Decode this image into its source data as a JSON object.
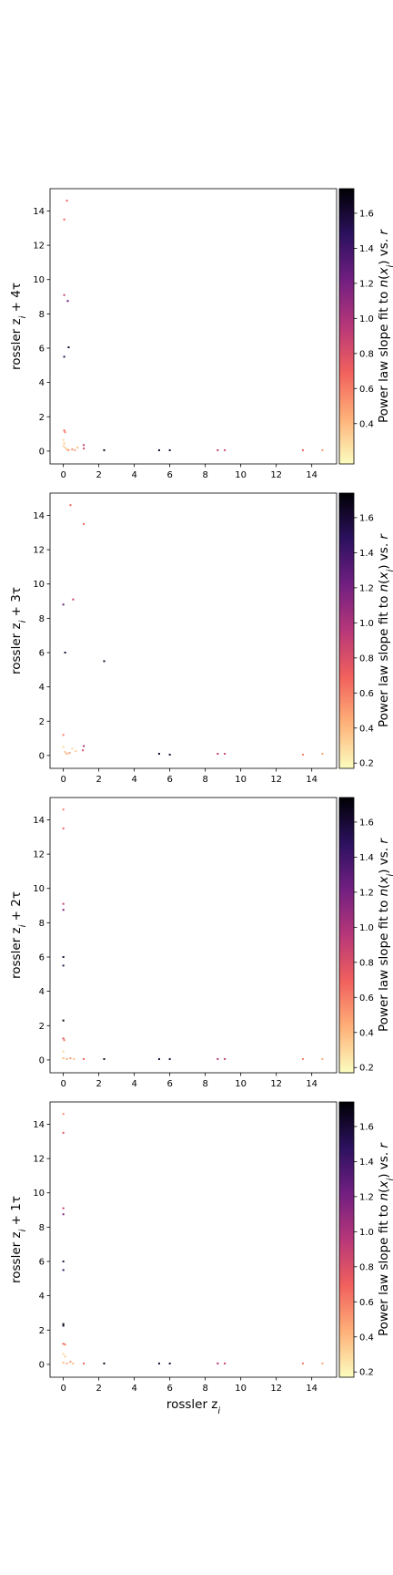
{
  "chart_data": [
    {
      "type": "scatter",
      "ylabel": "rossler z_i + 4τ",
      "xlabel": "",
      "colorbar_label": "Power law slope fit to n(x_i) vs. r",
      "xlim": [
        -0.75,
        15.4
      ],
      "ylim": [
        -0.75,
        15.3
      ],
      "xticks": [
        0,
        2,
        4,
        6,
        8,
        10,
        12,
        14
      ],
      "yticks": [
        0,
        2,
        4,
        6,
        8,
        10,
        12,
        14
      ],
      "clim": [
        0.17,
        1.74
      ],
      "cticks": [
        0.4,
        0.6,
        0.8,
        1.0,
        1.2,
        1.4,
        1.6
      ],
      "points": [
        {
          "x": 0.2,
          "y": 14.6,
          "c": 0.7
        },
        {
          "x": 0.05,
          "y": 13.5,
          "c": 0.7
        },
        {
          "x": 0.05,
          "y": 9.1,
          "c": 0.9
        },
        {
          "x": 0.25,
          "y": 8.75,
          "c": 1.3
        },
        {
          "x": 0.3,
          "y": 6.05,
          "c": 1.65
        },
        {
          "x": 0.05,
          "y": 5.5,
          "c": 1.5
        },
        {
          "x": 0.05,
          "y": 1.2,
          "c": 0.7
        },
        {
          "x": 0.1,
          "y": 1.1,
          "c": 0.6
        },
        {
          "x": 0.0,
          "y": 0.65,
          "c": 0.3
        },
        {
          "x": 0.05,
          "y": 0.45,
          "c": 0.35
        },
        {
          "x": 0.0,
          "y": 0.3,
          "c": 0.3
        },
        {
          "x": 0.1,
          "y": 0.2,
          "c": 0.35
        },
        {
          "x": 0.2,
          "y": 0.1,
          "c": 0.4
        },
        {
          "x": 0.3,
          "y": 0.05,
          "c": 0.5
        },
        {
          "x": 0.5,
          "y": 0.1,
          "c": 0.55
        },
        {
          "x": 0.8,
          "y": 0.2,
          "c": 0.4
        },
        {
          "x": 0.65,
          "y": 0.05,
          "c": 0.45
        },
        {
          "x": 1.15,
          "y": 0.35,
          "c": 0.9
        },
        {
          "x": 1.15,
          "y": 0.15,
          "c": 0.8
        },
        {
          "x": 2.3,
          "y": 0.05,
          "c": 1.65
        },
        {
          "x": 5.4,
          "y": 0.05,
          "c": 1.6
        },
        {
          "x": 6.0,
          "y": 0.05,
          "c": 1.6
        },
        {
          "x": 8.7,
          "y": 0.05,
          "c": 0.9
        },
        {
          "x": 9.1,
          "y": 0.05,
          "c": 0.85
        },
        {
          "x": 13.5,
          "y": 0.05,
          "c": 0.7
        },
        {
          "x": 14.6,
          "y": 0.05,
          "c": 0.5
        }
      ]
    },
    {
      "type": "scatter",
      "ylabel": "rossler z_i + 3τ",
      "xlabel": "",
      "colorbar_label": "Power law slope fit to n(x_i) vs. r",
      "xlim": [
        -0.75,
        15.4
      ],
      "ylim": [
        -0.75,
        15.3
      ],
      "xticks": [
        0,
        2,
        4,
        6,
        8,
        10,
        12,
        14
      ],
      "yticks": [
        0,
        2,
        4,
        6,
        8,
        10,
        12,
        14
      ],
      "clim": [
        0.17,
        1.74
      ],
      "cticks": [
        0.2,
        0.4,
        0.6,
        0.8,
        1.0,
        1.2,
        1.4,
        1.6
      ],
      "points": [
        {
          "x": 0.4,
          "y": 14.6,
          "c": 0.7
        },
        {
          "x": 1.15,
          "y": 13.5,
          "c": 0.7
        },
        {
          "x": 0.55,
          "y": 9.1,
          "c": 0.9
        },
        {
          "x": 0.0,
          "y": 8.8,
          "c": 1.25
        },
        {
          "x": 0.1,
          "y": 6.0,
          "c": 1.6
        },
        {
          "x": 2.3,
          "y": 5.5,
          "c": 1.6
        },
        {
          "x": 0.0,
          "y": 1.2,
          "c": 0.6
        },
        {
          "x": 0.0,
          "y": 0.5,
          "c": 0.3
        },
        {
          "x": 0.1,
          "y": 0.2,
          "c": 0.4
        },
        {
          "x": 0.2,
          "y": 0.1,
          "c": 0.45
        },
        {
          "x": 0.35,
          "y": 0.15,
          "c": 0.5
        },
        {
          "x": 0.5,
          "y": 0.4,
          "c": 0.3
        },
        {
          "x": 0.7,
          "y": 0.25,
          "c": 0.35
        },
        {
          "x": 1.15,
          "y": 0.55,
          "c": 0.95
        },
        {
          "x": 1.1,
          "y": 0.3,
          "c": 0.8
        },
        {
          "x": 5.4,
          "y": 0.1,
          "c": 1.6
        },
        {
          "x": 6.0,
          "y": 0.05,
          "c": 1.6
        },
        {
          "x": 8.7,
          "y": 0.1,
          "c": 0.9
        },
        {
          "x": 9.1,
          "y": 0.1,
          "c": 0.85
        },
        {
          "x": 13.5,
          "y": 0.05,
          "c": 0.6
        },
        {
          "x": 14.6,
          "y": 0.1,
          "c": 0.45
        }
      ]
    },
    {
      "type": "scatter",
      "ylabel": "rossler z_i + 2τ",
      "xlabel": "",
      "colorbar_label": "Power law slope fit to n(x_i) vs. r",
      "xlim": [
        -0.75,
        15.4
      ],
      "ylim": [
        -0.75,
        15.3
      ],
      "xticks": [
        0,
        2,
        4,
        6,
        8,
        10,
        12,
        14
      ],
      "yticks": [
        0,
        2,
        4,
        6,
        8,
        10,
        12,
        14
      ],
      "clim": [
        0.17,
        1.74
      ],
      "cticks": [
        0.2,
        0.4,
        0.6,
        0.8,
        1.0,
        1.2,
        1.4,
        1.6
      ],
      "points": [
        {
          "x": 0.0,
          "y": 14.6,
          "c": 0.6
        },
        {
          "x": 0.0,
          "y": 13.5,
          "c": 0.7
        },
        {
          "x": 0.0,
          "y": 9.1,
          "c": 0.9
        },
        {
          "x": 0.0,
          "y": 8.75,
          "c": 1.2
        },
        {
          "x": 0.0,
          "y": 6.0,
          "c": 1.6
        },
        {
          "x": 0.0,
          "y": 5.5,
          "c": 1.5
        },
        {
          "x": 0.0,
          "y": 2.3,
          "c": 1.7
        },
        {
          "x": 0.0,
          "y": 1.25,
          "c": 0.8
        },
        {
          "x": 0.05,
          "y": 1.15,
          "c": 0.6
        },
        {
          "x": 0.0,
          "y": 0.5,
          "c": 0.3
        },
        {
          "x": 0.0,
          "y": 0.1,
          "c": 0.4
        },
        {
          "x": 0.2,
          "y": 0.05,
          "c": 0.45
        },
        {
          "x": 0.4,
          "y": 0.1,
          "c": 0.5
        },
        {
          "x": 0.6,
          "y": 0.05,
          "c": 0.4
        },
        {
          "x": 1.15,
          "y": 0.05,
          "c": 0.7
        },
        {
          "x": 2.3,
          "y": 0.05,
          "c": 1.65
        },
        {
          "x": 5.4,
          "y": 0.05,
          "c": 1.6
        },
        {
          "x": 6.0,
          "y": 0.05,
          "c": 1.6
        },
        {
          "x": 8.7,
          "y": 0.05,
          "c": 0.95
        },
        {
          "x": 9.1,
          "y": 0.05,
          "c": 0.9
        },
        {
          "x": 13.5,
          "y": 0.05,
          "c": 0.6
        },
        {
          "x": 14.6,
          "y": 0.05,
          "c": 0.45
        }
      ]
    },
    {
      "type": "scatter",
      "ylabel": "rossler z_i + 1τ",
      "xlabel": "rossler z_i",
      "colorbar_label": "Power law slope fit to n(x_i) vs. r",
      "xlim": [
        -0.75,
        15.4
      ],
      "ylim": [
        -0.75,
        15.3
      ],
      "xticks": [
        0,
        2,
        4,
        6,
        8,
        10,
        12,
        14
      ],
      "yticks": [
        0,
        2,
        4,
        6,
        8,
        10,
        12,
        14
      ],
      "clim": [
        0.17,
        1.74
      ],
      "cticks": [
        0.2,
        0.4,
        0.6,
        0.8,
        1.0,
        1.2,
        1.4,
        1.6
      ],
      "points": [
        {
          "x": 0.0,
          "y": 14.6,
          "c": 0.55
        },
        {
          "x": 0.0,
          "y": 13.5,
          "c": 0.75
        },
        {
          "x": 0.0,
          "y": 9.1,
          "c": 0.9
        },
        {
          "x": 0.0,
          "y": 8.75,
          "c": 1.2
        },
        {
          "x": 0.0,
          "y": 6.0,
          "c": 1.55
        },
        {
          "x": 0.0,
          "y": 5.5,
          "c": 1.45
        },
        {
          "x": 0.0,
          "y": 2.35,
          "c": 1.7
        },
        {
          "x": 0.0,
          "y": 2.25,
          "c": 1.6
        },
        {
          "x": 0.0,
          "y": 1.2,
          "c": 0.7
        },
        {
          "x": 0.1,
          "y": 1.15,
          "c": 0.6
        },
        {
          "x": 0.0,
          "y": 0.6,
          "c": 0.3
        },
        {
          "x": 0.1,
          "y": 0.45,
          "c": 0.35
        },
        {
          "x": 0.0,
          "y": 0.1,
          "c": 0.4
        },
        {
          "x": 0.2,
          "y": 0.05,
          "c": 0.45
        },
        {
          "x": 0.4,
          "y": 0.15,
          "c": 0.5
        },
        {
          "x": 0.55,
          "y": 0.05,
          "c": 0.4
        },
        {
          "x": 1.15,
          "y": 0.05,
          "c": 0.7
        },
        {
          "x": 2.3,
          "y": 0.05,
          "c": 1.65
        },
        {
          "x": 5.4,
          "y": 0.05,
          "c": 1.6
        },
        {
          "x": 6.0,
          "y": 0.05,
          "c": 1.6
        },
        {
          "x": 8.7,
          "y": 0.05,
          "c": 0.95
        },
        {
          "x": 9.1,
          "y": 0.05,
          "c": 0.9
        },
        {
          "x": 13.5,
          "y": 0.05,
          "c": 0.6
        },
        {
          "x": 14.6,
          "y": 0.05,
          "c": 0.45
        }
      ]
    }
  ],
  "colormap": "magma_r",
  "colormap_stops": [
    "#fcfdbf",
    "#feb078",
    "#f1605d",
    "#b73779",
    "#721f81",
    "#2c115f",
    "#000004"
  ]
}
